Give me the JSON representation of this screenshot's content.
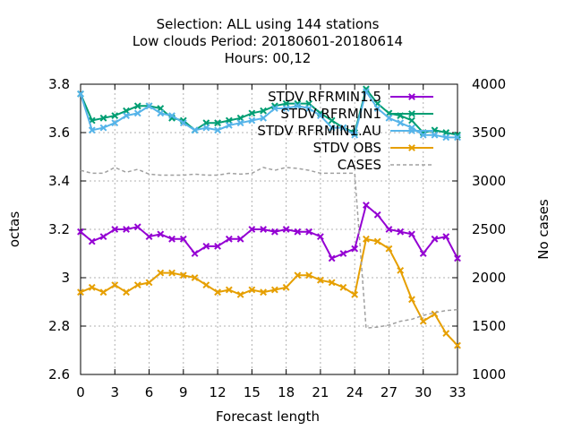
{
  "chart_data": {
    "type": "line",
    "title_lines": [
      "Selection: ALL using   144 stations",
      "Low clouds   Period: 20180601-20180614",
      "Hours:  00,12"
    ],
    "xlabel": "Forecast length",
    "ylabel": "octas",
    "y2label": "No cases",
    "xlim": [
      0,
      33
    ],
    "ylim": [
      2.6,
      3.8
    ],
    "y2lim": [
      1000,
      4000
    ],
    "xticks": [
      "0",
      "3",
      "6",
      "9",
      "12",
      "15",
      "18",
      "21",
      "24",
      "27",
      "30",
      "33"
    ],
    "yticks": [
      "2.6",
      "2.8",
      "3",
      "3.2",
      "3.4",
      "3.6",
      "3.8"
    ],
    "y2ticks": [
      "1000",
      "1500",
      "2000",
      "2500",
      "3000",
      "3500",
      "4000"
    ],
    "grid": true,
    "legend_position": "top-right",
    "x": [
      0,
      1,
      2,
      3,
      4,
      5,
      6,
      7,
      8,
      9,
      10,
      11,
      12,
      13,
      14,
      15,
      16,
      17,
      18,
      19,
      20,
      21,
      22,
      23,
      24,
      25,
      26,
      27,
      28,
      29,
      30,
      31,
      32,
      33
    ],
    "series": [
      {
        "name": "STDV RFRMIN1.5",
        "color": "#9400d3",
        "marker": "x",
        "axis": "y1",
        "values": [
          3.19,
          3.15,
          3.17,
          3.2,
          3.2,
          3.21,
          3.17,
          3.18,
          3.16,
          3.16,
          3.1,
          3.13,
          3.13,
          3.16,
          3.16,
          3.2,
          3.2,
          3.19,
          3.2,
          3.19,
          3.19,
          3.17,
          3.08,
          3.1,
          3.12,
          3.3,
          3.26,
          3.2,
          3.19,
          3.18,
          3.1,
          3.16,
          3.17,
          3.08
        ]
      },
      {
        "name": "STDV RFRMIN1",
        "color": "#009e73",
        "marker": "x",
        "axis": "y1",
        "values": [
          3.76,
          3.65,
          3.66,
          3.67,
          3.69,
          3.71,
          3.71,
          3.7,
          3.66,
          3.65,
          3.61,
          3.64,
          3.64,
          3.65,
          3.66,
          3.68,
          3.69,
          3.71,
          3.72,
          3.72,
          3.72,
          3.68,
          3.65,
          3.62,
          3.6,
          3.78,
          3.72,
          3.68,
          3.67,
          3.65,
          3.6,
          3.61,
          3.6,
          3.59
        ]
      },
      {
        "name": "STDV RFRMIN1.AU",
        "color": "#56b4e9",
        "marker": "x",
        "axis": "y1",
        "values": [
          3.76,
          3.61,
          3.62,
          3.64,
          3.67,
          3.68,
          3.71,
          3.68,
          3.67,
          3.64,
          3.61,
          3.62,
          3.61,
          3.63,
          3.64,
          3.65,
          3.66,
          3.7,
          3.7,
          3.71,
          3.7,
          3.67,
          3.62,
          3.62,
          3.59,
          3.77,
          3.7,
          3.66,
          3.64,
          3.62,
          3.59,
          3.59,
          3.58,
          3.58
        ]
      },
      {
        "name": "STDV OBS",
        "color": "#e69f00",
        "marker": "x",
        "axis": "y1",
        "values": [
          2.94,
          2.96,
          2.94,
          2.97,
          2.94,
          2.97,
          2.98,
          3.02,
          3.02,
          3.01,
          3.0,
          2.97,
          2.94,
          2.95,
          2.93,
          2.95,
          2.94,
          2.95,
          2.96,
          3.01,
          3.01,
          2.99,
          2.98,
          2.96,
          2.93,
          3.16,
          3.15,
          3.12,
          3.03,
          2.91,
          2.82,
          2.85,
          2.77,
          2.72
        ]
      },
      {
        "name": "CASES",
        "color": "#a0a0a0",
        "marker": "none",
        "dashed": true,
        "axis": "y2",
        "values": [
          3110,
          3080,
          3080,
          3140,
          3090,
          3120,
          3070,
          3060,
          3060,
          3060,
          3070,
          3060,
          3060,
          3080,
          3070,
          3080,
          3140,
          3110,
          3140,
          3130,
          3110,
          3080,
          3080,
          3080,
          3080,
          1480,
          1490,
          1510,
          1550,
          1570,
          1610,
          1640,
          1660,
          1670
        ]
      }
    ]
  }
}
